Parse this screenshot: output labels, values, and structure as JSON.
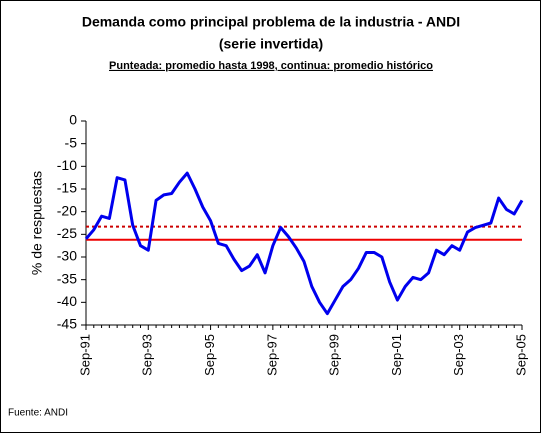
{
  "chart_data": {
    "type": "line",
    "title": "Demanda como principal problema de la industria - ANDI",
    "title2": "(serie invertida)",
    "subtitle": "Punteada: promedio hasta 1998, continua: promedio histórico",
    "y_label": "% de respuestas",
    "source": "Fuente: ANDI",
    "categories": [
      "Sep-91",
      null,
      null,
      null,
      null,
      null,
      null,
      null,
      "Sep-93",
      null,
      null,
      null,
      null,
      null,
      null,
      null,
      "Sep-95",
      null,
      null,
      null,
      null,
      null,
      null,
      null,
      "Sep-97",
      null,
      null,
      null,
      null,
      null,
      null,
      null,
      "Sep-99",
      null,
      null,
      null,
      null,
      null,
      null,
      null,
      "Sep-01",
      null,
      null,
      null,
      null,
      null,
      null,
      null,
      "Sep-03",
      null,
      null,
      null,
      null,
      null,
      null,
      null,
      "Sep-05"
    ],
    "series": [
      {
        "color": "#0000ee",
        "values": [
          -26,
          -24,
          -21,
          -21.5,
          -12.5,
          -13,
          -23,
          -27.5,
          -28.5,
          -17.5,
          -16.3,
          -16,
          -13.5,
          -11.5,
          -15,
          -19,
          -22,
          -27,
          -27.5,
          -30.5,
          -33,
          -32,
          -29.5,
          -33.5,
          -27.5,
          -23.5,
          -25.5,
          -28,
          -31,
          -36.5,
          -40,
          -42.5,
          -39.5,
          -36.5,
          -35,
          -32.5,
          -29,
          -29,
          -30,
          -35.5,
          -39.5,
          -36.5,
          -34.5,
          -35,
          -33.5,
          -28.5,
          -29.5,
          -27.5,
          -28.5,
          -24.5,
          -23.5,
          -23,
          -22.5,
          -17,
          -19.5,
          -20.5,
          -17.5
        ]
      }
    ],
    "hlines": [
      {
        "value": -23.3,
        "color": "#cc0000",
        "style": "dotted"
      },
      {
        "value": -26.2,
        "color": "#ee0000",
        "style": "solid"
      }
    ],
    "ylim": [
      -45,
      0
    ],
    "yticks": [
      0,
      -5,
      -10,
      -15,
      -20,
      -25,
      -30,
      -35,
      -40,
      -45
    ]
  }
}
